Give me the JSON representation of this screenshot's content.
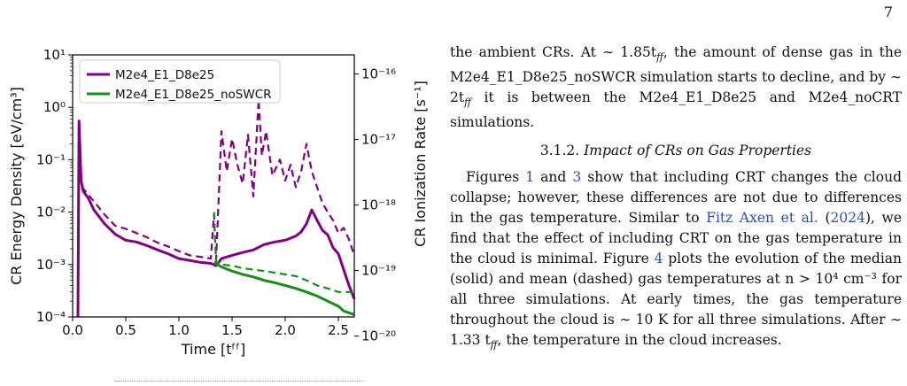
{
  "page": {
    "number": "7"
  },
  "figure": {
    "chart_data": {
      "type": "line",
      "xlabel": "Time [t_ff]",
      "ylabel_left": "CR Energy Density [eV/cm³]",
      "ylabel_right": "CR Ionization Rate [s⁻¹]",
      "xlim": [
        0.0,
        2.65
      ],
      "ylim_left": [
        0.0001,
        10
      ],
      "ylim_right_labels": [
        "10⁻¹⁶",
        "10⁻¹⁷",
        "10⁻¹⁸",
        "10⁻¹⁹",
        "10⁻²⁰"
      ],
      "x_ticks": [
        "0.0",
        "0.5",
        "1.0",
        "1.5",
        "2.0",
        "2.5"
      ],
      "y_ticks_left": [
        "10¹",
        "10⁰",
        "10⁻¹",
        "10⁻²",
        "10⁻³",
        "10⁻⁴"
      ],
      "log_scale": true,
      "legend_position": "top-left",
      "series": [
        {
          "name": "M2e4_E1_D8e25",
          "color": "#800080",
          "style": "solid",
          "x": [
            0.05,
            0.06,
            0.08,
            0.1,
            0.15,
            0.2,
            0.3,
            0.4,
            0.5,
            0.6,
            0.7,
            0.8,
            0.9,
            1.0,
            1.1,
            1.2,
            1.3,
            1.35,
            1.4,
            1.5,
            1.6,
            1.7,
            1.8,
            1.9,
            2.0,
            2.1,
            2.15,
            2.2,
            2.25,
            2.3,
            2.35,
            2.4,
            2.45,
            2.5,
            2.55,
            2.6,
            2.65
          ],
          "values": [
            0.0001,
            0.55,
            0.04,
            0.025,
            0.018,
            0.011,
            0.006,
            0.0038,
            0.0029,
            0.0027,
            0.0023,
            0.0019,
            0.0016,
            0.0013,
            0.0012,
            0.0011,
            0.00105,
            0.00095,
            0.0013,
            0.0015,
            0.0017,
            0.0019,
            0.0024,
            0.0027,
            0.0029,
            0.0035,
            0.0042,
            0.006,
            0.011,
            0.007,
            0.0045,
            0.0037,
            0.0021,
            0.0016,
            0.0008,
            0.0004,
            0.00022
          ]
        },
        {
          "name": "M2e4_E1_D8e25 (mean)",
          "color": "#800080",
          "style": "dashed",
          "x": [
            0.08,
            0.1,
            0.2,
            0.3,
            0.4,
            0.5,
            0.6,
            0.7,
            0.8,
            0.9,
            1.0,
            1.1,
            1.2,
            1.3,
            1.33,
            1.35,
            1.4,
            1.45,
            1.5,
            1.55,
            1.6,
            1.65,
            1.7,
            1.75,
            1.78,
            1.82,
            1.88,
            1.95,
            2.0,
            2.05,
            2.1,
            2.15,
            2.2,
            2.25,
            2.3,
            2.35,
            2.4,
            2.45,
            2.5,
            2.55,
            2.6,
            2.65
          ],
          "values": [
            0.03,
            0.028,
            0.016,
            0.009,
            0.0055,
            0.0048,
            0.004,
            0.0033,
            0.0026,
            0.0022,
            0.0018,
            0.0015,
            0.0014,
            0.0013,
            0.009,
            0.0012,
            0.35,
            0.06,
            0.25,
            0.08,
            0.035,
            0.3,
            0.02,
            1.4,
            0.12,
            0.35,
            0.05,
            0.1,
            0.04,
            0.08,
            0.03,
            0.06,
            0.2,
            0.06,
            0.03,
            0.015,
            0.01,
            0.007,
            0.004,
            0.005,
            0.003,
            0.0015
          ]
        },
        {
          "name": "M2e4_E1_D8e25_noSWCR",
          "color": "#1a8a1a",
          "style": "solid",
          "x": [
            1.33,
            1.4,
            1.5,
            1.6,
            1.7,
            1.8,
            1.9,
            2.0,
            2.1,
            2.2,
            2.3,
            2.4,
            2.5,
            2.55,
            2.6,
            2.65
          ],
          "values": [
            0.0011,
            0.0009,
            0.00075,
            0.00065,
            0.00058,
            0.0005,
            0.00045,
            0.0004,
            0.00035,
            0.0003,
            0.00025,
            0.0002,
            0.00016,
            0.00013,
            0.00012,
            0.00011
          ]
        },
        {
          "name": "M2e4_E1_D8e25_noSWCR (mean)",
          "color": "#1a8a1a",
          "style": "dashed",
          "x": [
            1.33,
            1.35,
            1.4,
            1.5,
            1.6,
            1.7,
            1.8,
            1.9,
            2.0,
            2.1,
            2.2,
            2.3,
            2.4,
            2.5,
            2.6,
            2.65
          ],
          "values": [
            0.01,
            0.0011,
            0.001,
            0.00095,
            0.00085,
            0.0008,
            0.00075,
            0.0007,
            0.00065,
            0.0006,
            0.0005,
            0.0004,
            0.00035,
            0.0003,
            0.0003,
            0.00028
          ]
        }
      ],
      "legend": [
        "M2e4_E1_D8e25",
        "M2e4_E1_D8e25_noSWCR"
      ]
    }
  },
  "text": {
    "p1": "the ambient CRs. At ∼ 1.85t",
    "p1_sub": "ff",
    "p1b": ", the amount of dense gas in the M2e4_E1_D8e25_noSWCR simulation starts to decline, and by ∼ 2t",
    "p1b_sub": "ff",
    "p1c": " it is between the M2e4_E1_D8e25 and M2e4_noCRT simulations.",
    "subsec_num": "3.1.2.",
    "subsec_title": "Impact of CRs on Gas Properties",
    "p2a": "Figures ",
    "ref1": "1",
    "p2b": " and ",
    "ref3": "3",
    "p2c": " show that including CRT changes the cloud collapse; however, these differences are not due to differences in the gas temperature. Similar to ",
    "cite1": "Fitz Axen et al.",
    "p2d": " (",
    "cite_year": "2024",
    "p2e": "), we find that the effect of including CRT on the gas temperature in the cloud is minimal. Figure ",
    "ref4": "4",
    "p2f": " plots the evolution of the median (solid) and mean (dashed) gas temperatures at n > 10⁴ cm⁻³ for all three simulations. At early times, the gas temperature throughout the cloud is ∼ 10 K for all three simulations. After ∼ 1.33 t",
    "p2f_sub": "ff",
    "p2g": ", the temperature in the cloud increases."
  }
}
